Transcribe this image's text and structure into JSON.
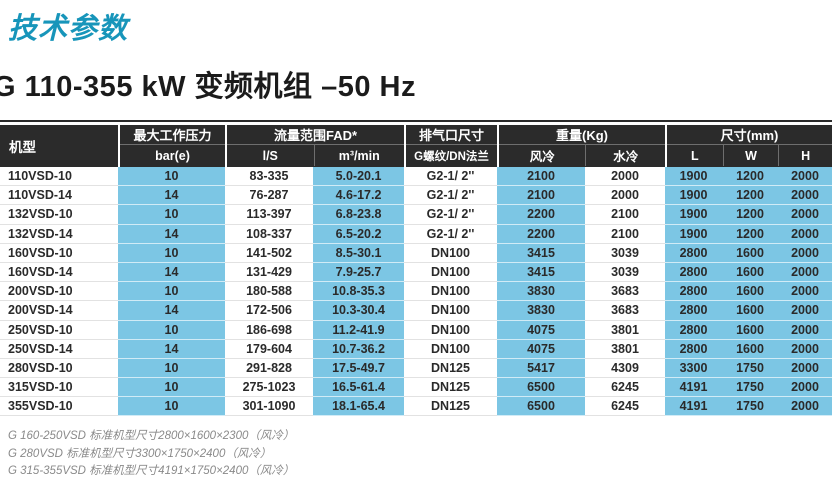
{
  "page": {
    "title": "技术参数",
    "subtitle": "G 110-355 kW 变频机组 –50 Hz"
  },
  "colors": {
    "accent_teal": "#1795ba",
    "header_bg": "#2b2b2b",
    "cyan_cell": "#7cc6e4"
  },
  "table": {
    "header": {
      "model": "机型",
      "pressure_group": "最大工作压力",
      "pressure_unit": "bar(e)",
      "flow_group": "流量范围FAD*",
      "flow_ls": "l/S",
      "flow_m3": "m³/min",
      "outlet_group": "排气口尺寸",
      "outlet_sub": "G螺纹/DN法兰",
      "weight_group": "重量(Kg)",
      "weight_air": "风冷",
      "weight_water": "水冷",
      "dim_group": "尺寸(mm)",
      "dim_l": "L",
      "dim_w": "W",
      "dim_h": "H"
    },
    "rows": [
      [
        "110VSD-10",
        "10",
        "83-335",
        "5.0-20.1",
        "G2-1/ 2''",
        "2100",
        "2000",
        "1900",
        "1200",
        "2000"
      ],
      [
        "110VSD-14",
        "14",
        "76-287",
        "4.6-17.2",
        "G2-1/ 2''",
        "2100",
        "2000",
        "1900",
        "1200",
        "2000"
      ],
      [
        "132VSD-10",
        "10",
        "113-397",
        "6.8-23.8",
        "G2-1/ 2''",
        "2200",
        "2100",
        "1900",
        "1200",
        "2000"
      ],
      [
        "132VSD-14",
        "14",
        "108-337",
        "6.5-20.2",
        "G2-1/ 2''",
        "2200",
        "2100",
        "1900",
        "1200",
        "2000"
      ],
      [
        "160VSD-10",
        "10",
        "141-502",
        "8.5-30.1",
        "DN100",
        "3415",
        "3039",
        "2800",
        "1600",
        "2000"
      ],
      [
        "160VSD-14",
        "14",
        "131-429",
        "7.9-25.7",
        "DN100",
        "3415",
        "3039",
        "2800",
        "1600",
        "2000"
      ],
      [
        "200VSD-10",
        "10",
        "180-588",
        "10.8-35.3",
        "DN100",
        "3830",
        "3683",
        "2800",
        "1600",
        "2000"
      ],
      [
        "200VSD-14",
        "14",
        "172-506",
        "10.3-30.4",
        "DN100",
        "3830",
        "3683",
        "2800",
        "1600",
        "2000"
      ],
      [
        "250VSD-10",
        "10",
        "186-698",
        "11.2-41.9",
        "DN100",
        "4075",
        "3801",
        "2800",
        "1600",
        "2000"
      ],
      [
        "250VSD-14",
        "14",
        "179-604",
        "10.7-36.2",
        "DN100",
        "4075",
        "3801",
        "2800",
        "1600",
        "2000"
      ],
      [
        "280VSD-10",
        "10",
        "291-828",
        "17.5-49.7",
        "DN125",
        "5417",
        "4309",
        "3300",
        "1750",
        "2000"
      ],
      [
        "315VSD-10",
        "10",
        "275-1023",
        "16.5-61.4",
        "DN125",
        "6500",
        "6245",
        "4191",
        "1750",
        "2000"
      ],
      [
        "355VSD-10",
        "10",
        "301-1090",
        "18.1-65.4",
        "DN125",
        "6500",
        "6245",
        "4191",
        "1750",
        "2000"
      ]
    ]
  },
  "footnotes": [
    "G 160-250VSD 标准机型尺寸2800×1600×2300（风冷）",
    "G 280VSD 标准机型尺寸3300×1750×2400（风冷）",
    "G 315-355VSD 标准机型尺寸4191×1750×2400（风冷）"
  ]
}
